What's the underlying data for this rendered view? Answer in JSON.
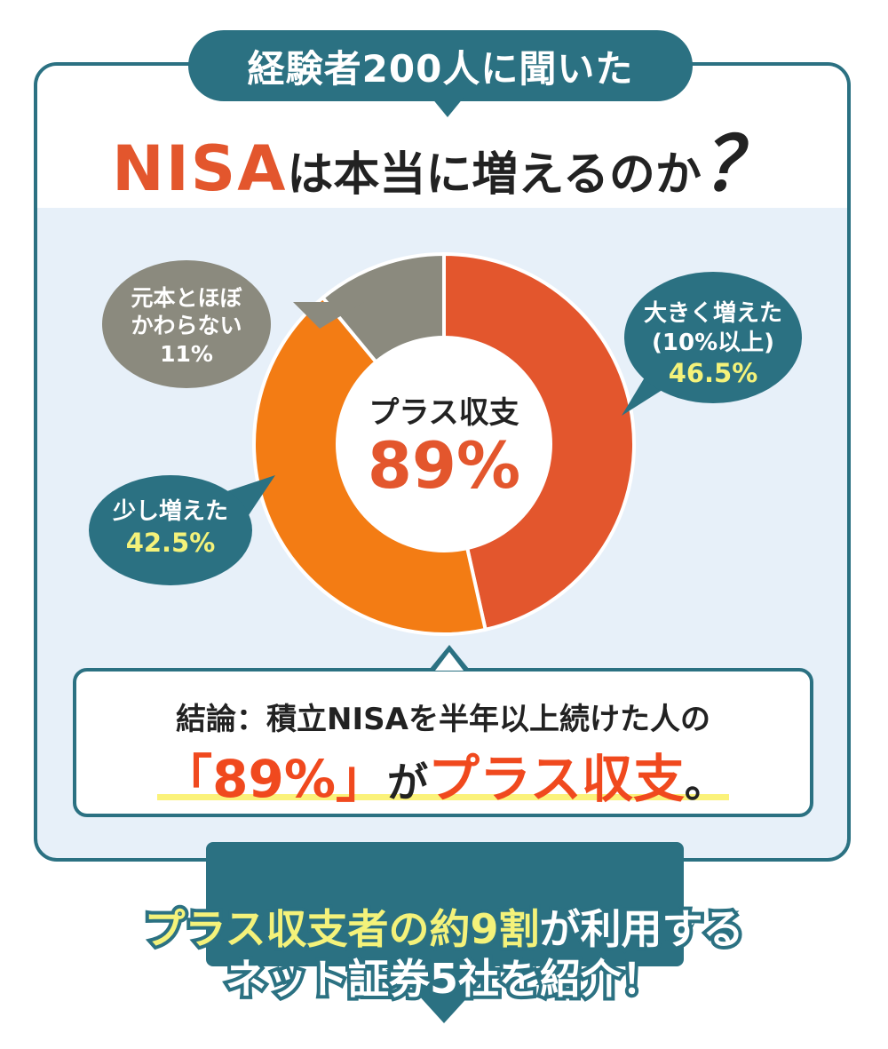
{
  "badge": "経験者200人に聞いた",
  "headline": {
    "nisa": "NISA",
    "rest": "は本当に増えるのか",
    "mark": "？"
  },
  "chart_data": {
    "type": "pie",
    "center_label": "プラス収支",
    "center_value": "89%",
    "slices": [
      {
        "label_lines": [
          "大きく増えた",
          "(10%以上)"
        ],
        "value": 46.5,
        "value_text": "46.5%",
        "color": "#e3562d"
      },
      {
        "label_lines": [
          "少し増えた"
        ],
        "value": 42.5,
        "value_text": "42.5%",
        "color": "#f37c14"
      },
      {
        "label_lines": [
          "元本とほぼ",
          "かわらない"
        ],
        "value": 11,
        "value_text": "11%",
        "color": "#8b8a7e"
      }
    ]
  },
  "conclusion": {
    "line1": "結論：積立NISAを半年以上続けた人の",
    "highlight": "「89%」",
    "middle": "が",
    "emphasis": "プラス収支",
    "end": "。"
  },
  "banner": {
    "line1_yellow": "プラス収支者の約9割",
    "line1_white": "が利用する",
    "line2": "ネット証券5社を紹介！"
  },
  "colors": {
    "teal": "#2b7182",
    "light_bg": "#e7f0f9",
    "value_yellow": "#f4f27a"
  }
}
